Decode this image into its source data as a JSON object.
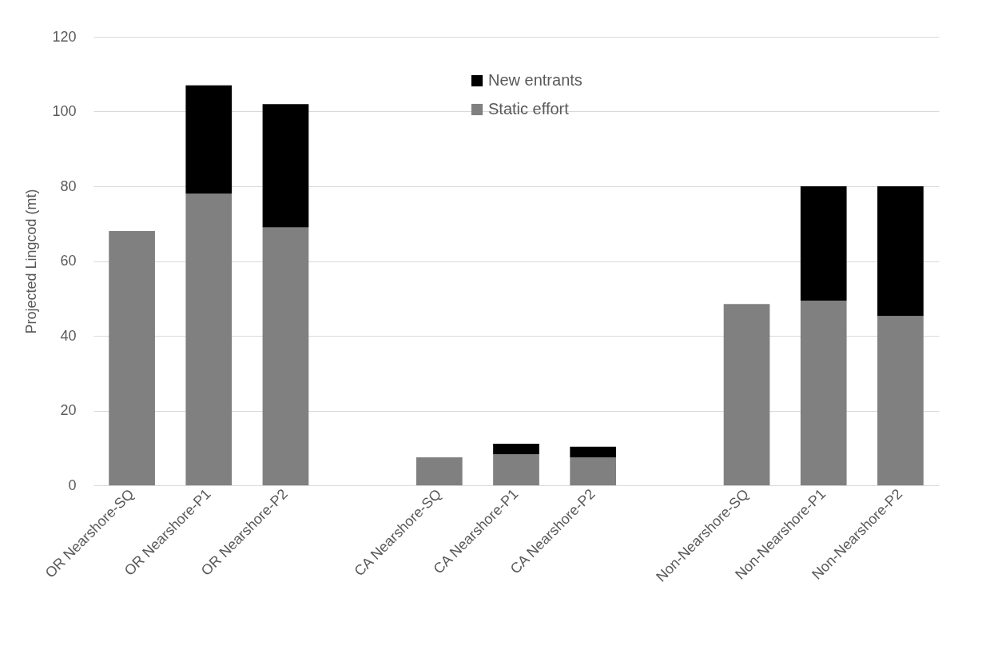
{
  "chart_data": {
    "type": "bar",
    "stacked": true,
    "ylabel": "Projected Lingcod (mt)",
    "categories": [
      "OR Nearshore-SQ",
      "OR Nearshore-P1",
      "OR Nearshore-P2",
      null,
      "CA Nearshore-SQ",
      "CA Nearshore-P1",
      "CA Nearshore-P2",
      null,
      "Non-Nearshore-SQ",
      "Non-Nearshore-P1",
      "Non-Nearshore-P2"
    ],
    "series": [
      {
        "name": "Static effort",
        "color": "#808080",
        "values": [
          68,
          78,
          69,
          null,
          7.5,
          8.3,
          7.5,
          null,
          48.5,
          49.4,
          45.3
        ]
      },
      {
        "name": "New entrants",
        "color": "#000000",
        "values": [
          null,
          29,
          33,
          null,
          null,
          2.8,
          2.8,
          null,
          null,
          30.6,
          34.7
        ]
      }
    ],
    "ylim": [
      0,
      120
    ],
    "yticks": [
      0,
      20,
      40,
      60,
      80,
      100,
      120
    ],
    "grid": "y",
    "legend": "top"
  }
}
